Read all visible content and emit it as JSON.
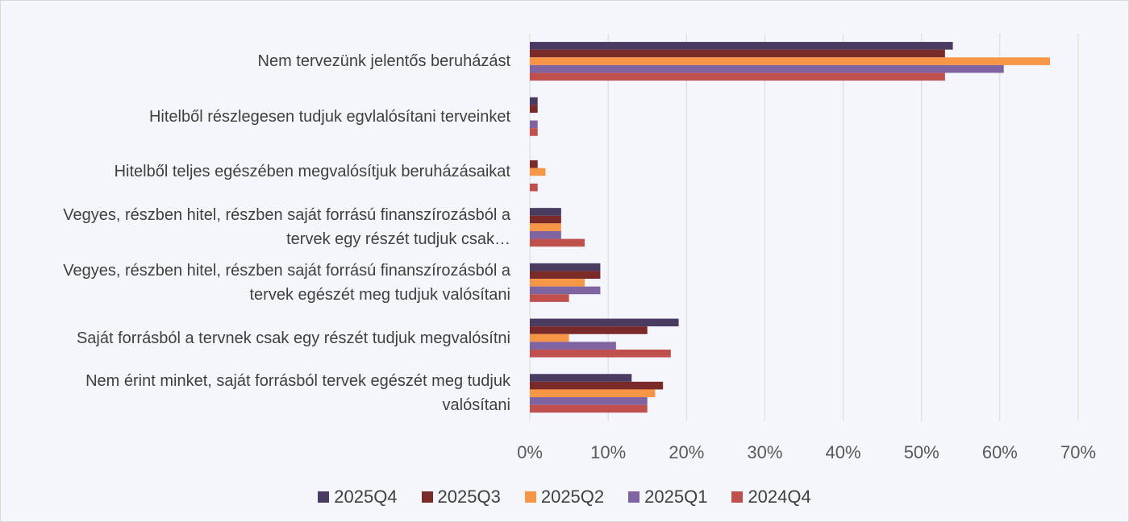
{
  "chart_data": {
    "type": "hbar",
    "categories": [
      "Nem tervezünk jelentős beruházást",
      "Hitelből részlegesen tudjuk egvlalósítani terveinket",
      "Hitelből teljes egészében megvalósítjuk beruházásaikat",
      "Vegyes, részben hitel, részben saját forrású finanszírozásból a tervek egy részét tudjuk csak…",
      "Vegyes, részben hitel, részben saját forrású finanszírozásból a tervek egészét meg tudjuk valósítani",
      "Saját forrásból a tervnek csak egy részét tudjuk megvalósítni",
      "Nem érint minket, saját forrásból tervek egészét meg tudjuk valósítani"
    ],
    "series": [
      {
        "name": "2025Q4",
        "color": "#4a3b60",
        "values": [
          54,
          1,
          0,
          4,
          9,
          19,
          13
        ]
      },
      {
        "name": "2025Q3",
        "color": "#7b2a2a",
        "values": [
          53,
          1,
          1,
          4,
          9,
          15,
          17
        ]
      },
      {
        "name": "2025Q2",
        "color": "#f79646",
        "values": [
          66.4,
          0,
          2,
          4,
          7,
          5,
          16
        ]
      },
      {
        "name": "2025Q1",
        "color": "#8064a2",
        "values": [
          60.5,
          1,
          0,
          4,
          9,
          11,
          15
        ]
      },
      {
        "name": "2024Q4",
        "color": "#c0504d",
        "values": [
          53,
          1,
          1,
          7,
          5,
          18,
          15
        ]
      }
    ],
    "xlim": [
      0,
      70
    ],
    "xticks": [
      {
        "value": 0,
        "label": "0%"
      },
      {
        "value": 10,
        "label": "10%"
      },
      {
        "value": 20,
        "label": "20%"
      },
      {
        "value": 30,
        "label": "30%"
      },
      {
        "value": 40,
        "label": "40%"
      },
      {
        "value": 50,
        "label": "50%"
      },
      {
        "value": 60,
        "label": "60%"
      },
      {
        "value": 70,
        "label": "70%"
      }
    ],
    "grid": true,
    "legend": "bottom"
  }
}
